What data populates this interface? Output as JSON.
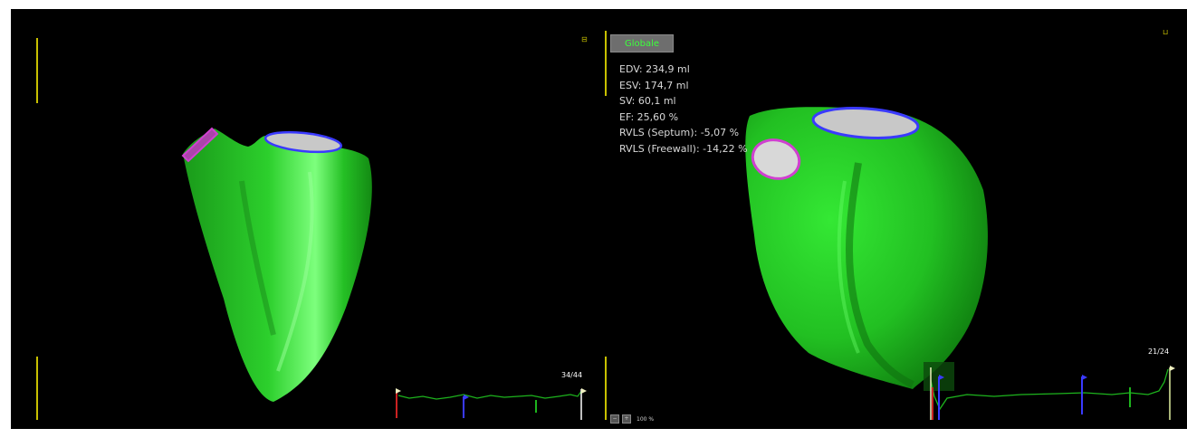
{
  "toolbar": {
    "globale_label": "Globale"
  },
  "metrics": [
    {
      "label": "EDV",
      "value": "234,9 ml"
    },
    {
      "label": "ESV",
      "value": "174,7 ml"
    },
    {
      "label": "SV",
      "value": "60,1 ml"
    },
    {
      "label": "EF",
      "value": "25,60 %"
    },
    {
      "label": "RVLS (Septum)",
      "value": "-5,07 %"
    },
    {
      "label": "RVLS (Freewall)",
      "value": "-14,22 %"
    }
  ],
  "left_view": {
    "frame_counter": "34/44"
  },
  "right_view": {
    "frame_counter": "21/24"
  },
  "zoom": {
    "value": "100 %"
  },
  "colors": {
    "background": "#000000",
    "model_green": "#2ee02e",
    "valve_blue": "#3a3aff",
    "valve_magenta": "#d040d0",
    "trace_green": "#1db41d",
    "marker_yellow": "#c8c000",
    "globale_text": "#3cff3c"
  },
  "icons": [
    "maximize-icon",
    "zoom-in-icon",
    "zoom-out-icon",
    "flag-marker-icon"
  ]
}
